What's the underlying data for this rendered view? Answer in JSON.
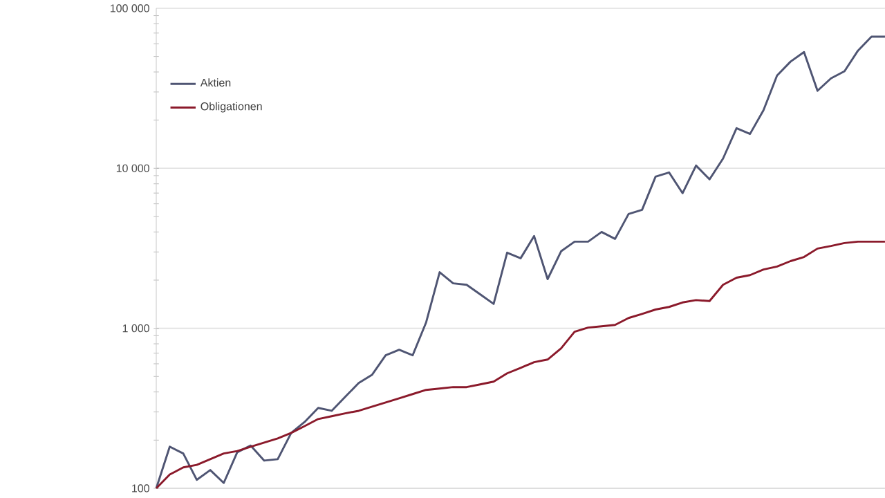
{
  "chart_data": {
    "type": "line",
    "log": "y",
    "grid": "y",
    "legend": "top left",
    "categories": [
      null,
      null,
      null,
      null,
      null,
      null,
      null,
      null,
      null,
      null,
      null,
      null,
      null,
      null,
      null,
      null,
      null,
      null,
      null,
      null,
      null,
      null,
      null,
      null,
      null,
      null,
      null,
      null,
      null,
      null,
      null,
      null,
      null,
      null,
      null,
      null,
      null,
      null,
      null,
      null,
      null,
      null,
      null,
      null,
      null,
      null,
      null,
      null,
      null,
      null,
      null,
      null,
      null,
      null,
      null
    ],
    "ylim": [
      100,
      100000
    ],
    "yticks": [
      100,
      {
        "value": 1000,
        "label": "1 000"
      },
      {
        "value": 10000,
        "label": "10 000"
      },
      {
        "value": 100000,
        "label": "100 000"
      }
    ],
    "series": [
      {
        "name": "Aktien",
        "color": "#4f5573",
        "values": [
          100,
          182,
          165,
          113,
          130,
          108,
          168,
          185,
          149,
          152,
          222,
          260,
          318,
          305,
          373,
          455,
          513,
          678,
          734,
          678,
          1090,
          2240,
          1910,
          1870,
          1630,
          1420,
          2970,
          2740,
          3770,
          2030,
          3030,
          3480,
          3480,
          4000,
          3620,
          5180,
          5500,
          8870,
          9420,
          6990,
          10400,
          8530,
          11500,
          17800,
          16400,
          23100,
          38000,
          46400,
          53300,
          30500,
          36500,
          40400,
          54400,
          66500,
          66500
        ]
      },
      {
        "name": "Obligationen",
        "color": "#8b1a2b",
        "values": [
          100,
          122,
          135,
          140,
          152,
          165,
          171,
          182,
          193,
          205,
          222,
          245,
          271,
          282,
          294,
          305,
          324,
          344,
          365,
          388,
          412,
          420,
          429,
          429,
          446,
          464,
          523,
          566,
          614,
          638,
          749,
          951,
          1010,
          1030,
          1050,
          1160,
          1230,
          1310,
          1360,
          1450,
          1500,
          1480,
          1870,
          2070,
          2150,
          2330,
          2430,
          2630,
          2790,
          3150,
          3270,
          3410,
          3480,
          3480,
          3480
        ]
      }
    ]
  }
}
